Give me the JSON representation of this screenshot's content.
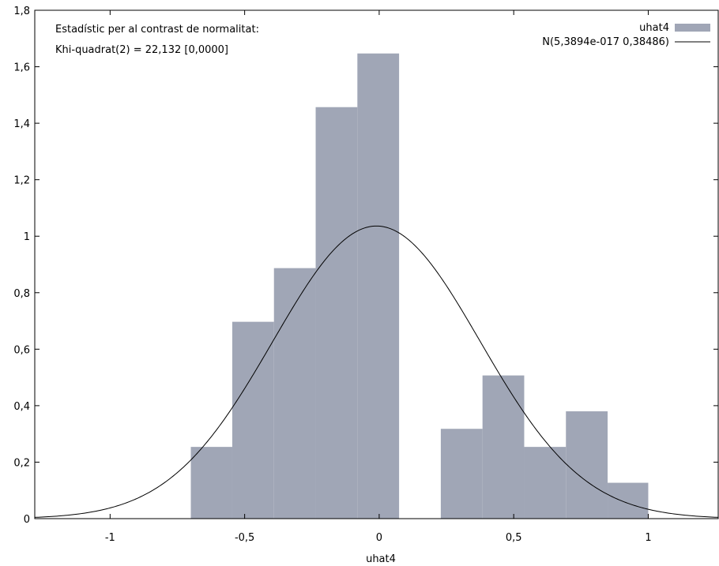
{
  "chart_data": {
    "type": "bar",
    "title": "",
    "xlabel": "uhat4",
    "ylabel": "",
    "xlim": [
      -1.28,
      1.26
    ],
    "ylim": [
      0,
      1.8
    ],
    "xticks": [
      {
        "value": -1,
        "label": "-1"
      },
      {
        "value": -0.5,
        "label": "-0,5"
      },
      {
        "value": 0,
        "label": "0"
      },
      {
        "value": 0.5,
        "label": "0,5"
      },
      {
        "value": 1,
        "label": "1"
      }
    ],
    "yticks": [
      {
        "value": 0,
        "label": "0"
      },
      {
        "value": 0.2,
        "label": "0,2"
      },
      {
        "value": 0.4,
        "label": "0,4"
      },
      {
        "value": 0.6,
        "label": "0,6"
      },
      {
        "value": 0.8,
        "label": "0,8"
      },
      {
        "value": 1,
        "label": "1"
      },
      {
        "value": 1.2,
        "label": "1,2"
      },
      {
        "value": 1.4,
        "label": "1,4"
      },
      {
        "value": 1.6,
        "label": "1,6"
      },
      {
        "value": 1.8,
        "label": "1,8"
      }
    ],
    "annotations": [
      "Estadístic per al contrast de normalitat:",
      "Khi-quadrat(2) = 22,132 [0,0000]"
    ],
    "histogram": {
      "name": "uhat4",
      "color": "#a0a6b6",
      "bins": [
        {
          "x0": -0.7,
          "x1": -0.546,
          "density": 0.254
        },
        {
          "x0": -0.546,
          "x1": -0.391,
          "density": 0.697
        },
        {
          "x0": -0.391,
          "x1": -0.236,
          "density": 0.887
        },
        {
          "x0": -0.236,
          "x1": -0.081,
          "density": 1.457
        },
        {
          "x0": -0.081,
          "x1": 0.074,
          "density": 1.647
        },
        {
          "x0": 0.074,
          "x1": 0.229,
          "density": 0
        },
        {
          "x0": 0.229,
          "x1": 0.384,
          "density": 0.318
        },
        {
          "x0": 0.384,
          "x1": 0.539,
          "density": 0.507
        },
        {
          "x0": 0.539,
          "x1": 0.694,
          "density": 0.254
        },
        {
          "x0": 0.694,
          "x1": 0.849,
          "density": 0.38
        },
        {
          "x0": 0.849,
          "x1": 1.0,
          "density": 0.127
        }
      ]
    },
    "normal_curve": {
      "name": "N(5,3894e-017 0,38486)",
      "mean": 0,
      "sd": 0.38486,
      "peak_density": 1.036,
      "peak_x": -0.01,
      "color": "#000000"
    },
    "legend_placement": "top-right",
    "grid": false
  }
}
